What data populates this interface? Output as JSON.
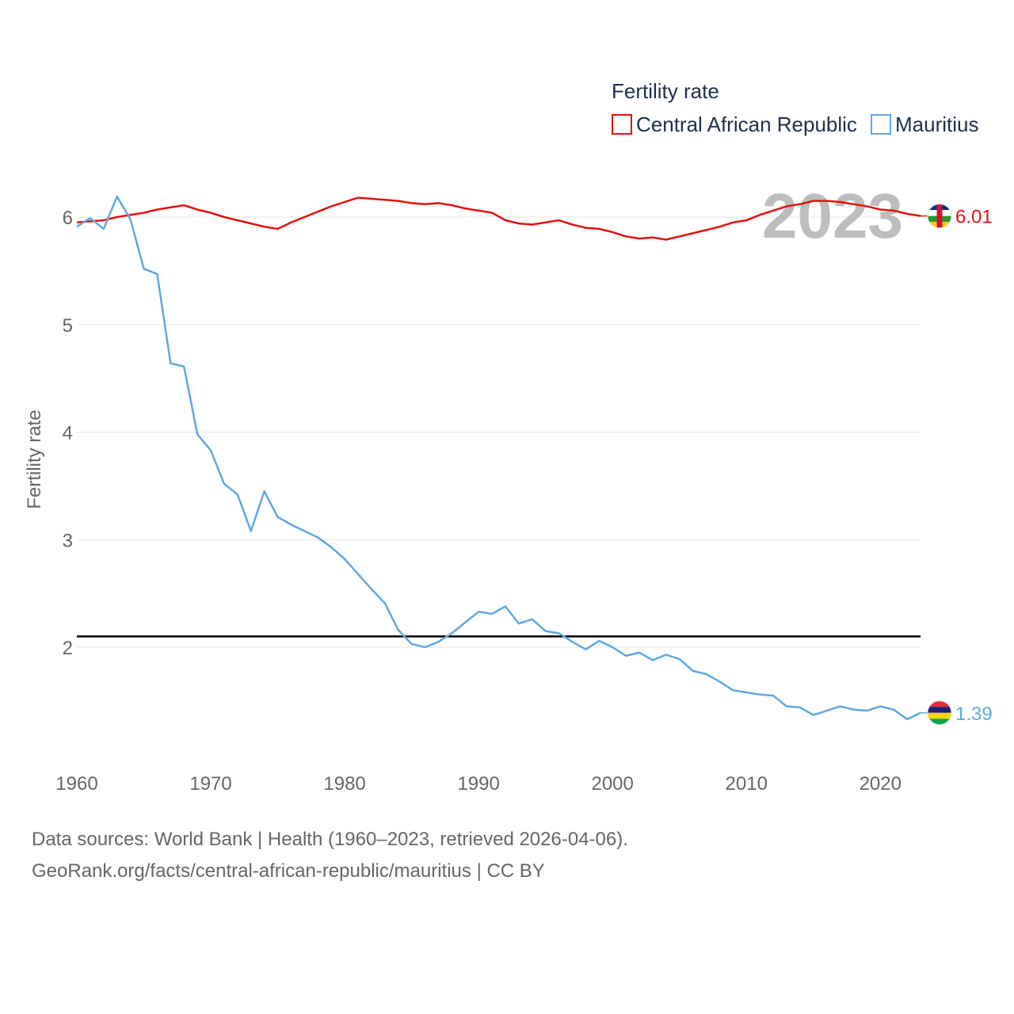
{
  "chart_data": {
    "type": "line",
    "title": "",
    "legend_title": "Fertility rate",
    "legend_position": "top-right",
    "ylabel": "Fertility rate",
    "xlabel": "",
    "xlim": [
      1960,
      2023
    ],
    "ylim": [
      1,
      6.5
    ],
    "x_ticks": [
      1960,
      1970,
      1980,
      1990,
      2000,
      2010,
      2020
    ],
    "y_ticks": [
      2,
      3,
      4,
      5,
      6
    ],
    "x_tick_labels": [
      "1960",
      "1970",
      "1980",
      "1990",
      "2000",
      "2010",
      "2020"
    ],
    "y_tick_labels": [
      "2",
      "3",
      "4",
      "5",
      "6"
    ],
    "grid": true,
    "year_stamp": "2023",
    "reference_line": {
      "value": 2.1,
      "color": "#000000"
    },
    "x": [
      1960,
      1961,
      1962,
      1963,
      1964,
      1965,
      1966,
      1967,
      1968,
      1969,
      1970,
      1971,
      1972,
      1973,
      1974,
      1975,
      1976,
      1977,
      1978,
      1979,
      1980,
      1981,
      1982,
      1983,
      1984,
      1985,
      1986,
      1987,
      1988,
      1989,
      1990,
      1991,
      1992,
      1993,
      1994,
      1995,
      1996,
      1997,
      1998,
      1999,
      2000,
      2001,
      2002,
      2003,
      2004,
      2005,
      2006,
      2007,
      2008,
      2009,
      2010,
      2011,
      2012,
      2013,
      2014,
      2015,
      2016,
      2017,
      2018,
      2019,
      2020,
      2021,
      2022,
      2023
    ],
    "series": [
      {
        "name": "Central African Republic",
        "color": "#e3120b",
        "end_label": "6.01",
        "flag": "central-african-republic-flag-icon",
        "values": [
          5.95,
          5.96,
          5.97,
          6.0,
          6.02,
          6.04,
          6.07,
          6.09,
          6.11,
          6.07,
          6.04,
          6.0,
          5.97,
          5.94,
          5.91,
          5.89,
          5.95,
          6.0,
          6.05,
          6.1,
          6.14,
          6.18,
          6.17,
          6.16,
          6.15,
          6.13,
          6.12,
          6.13,
          6.11,
          6.08,
          6.06,
          6.04,
          5.97,
          5.94,
          5.93,
          5.95,
          5.97,
          5.93,
          5.9,
          5.89,
          5.86,
          5.82,
          5.8,
          5.81,
          5.79,
          5.82,
          5.85,
          5.88,
          5.91,
          5.95,
          5.97,
          6.02,
          6.06,
          6.1,
          6.12,
          6.15,
          6.15,
          6.14,
          6.12,
          6.1,
          6.07,
          6.06,
          6.03,
          6.01
        ]
      },
      {
        "name": "Mauritius",
        "color": "#5ea8e6",
        "end_label": "1.39",
        "flag": "mauritius-flag-icon",
        "values": [
          5.91,
          5.99,
          5.89,
          6.19,
          5.98,
          5.52,
          5.47,
          4.64,
          4.61,
          3.98,
          3.83,
          3.52,
          3.42,
          3.08,
          3.45,
          3.21,
          3.14,
          3.08,
          3.02,
          2.93,
          2.82,
          2.68,
          2.54,
          2.41,
          2.16,
          2.03,
          2.0,
          2.05,
          2.13,
          2.23,
          2.33,
          2.31,
          2.38,
          2.22,
          2.26,
          2.15,
          2.13,
          2.05,
          1.98,
          2.06,
          2.0,
          1.92,
          1.95,
          1.88,
          1.93,
          1.89,
          1.78,
          1.75,
          1.68,
          1.6,
          1.58,
          1.56,
          1.55,
          1.45,
          1.44,
          1.37,
          1.41,
          1.45,
          1.42,
          1.41,
          1.45,
          1.42,
          1.33,
          1.39
        ]
      }
    ]
  },
  "footer": {
    "line1": "Data sources: World Bank | Health (1960–2023, retrieved 2026-04-06).",
    "line2": "GeoRank.org/facts/central-african-republic/mauritius | CC BY"
  }
}
